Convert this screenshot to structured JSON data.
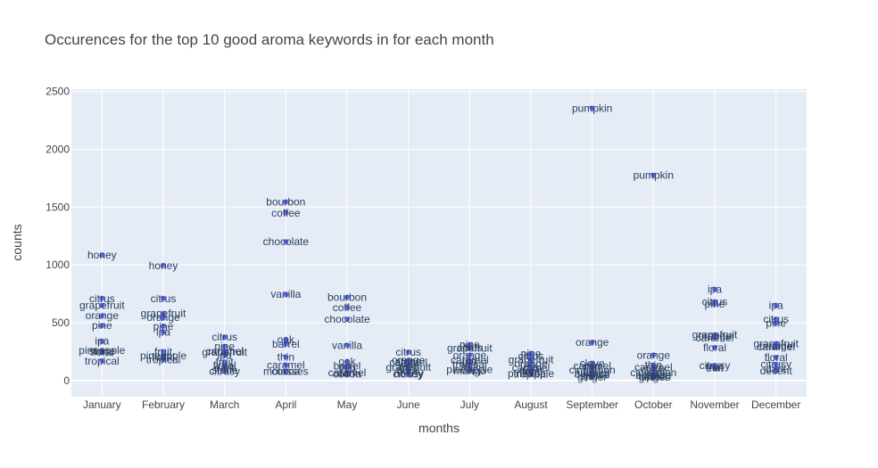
{
  "chart_data": {
    "type": "scatter",
    "title": "Occurences for the top 10 good aroma keywords in for each month",
    "xlabel": "months",
    "ylabel": "counts",
    "categories": [
      "January",
      "February",
      "March",
      "April",
      "May",
      "June",
      "July",
      "August",
      "September",
      "October",
      "November",
      "December"
    ],
    "ylim": [
      -140,
      2520
    ],
    "yticks": [
      0,
      500,
      1000,
      1500,
      2000,
      2500
    ],
    "grid": true,
    "legend": "none",
    "marker_color": "#636efa",
    "points": [
      {
        "month": "January",
        "label": "honey",
        "value": 1085
      },
      {
        "month": "January",
        "label": "citrus",
        "value": 710
      },
      {
        "month": "January",
        "label": "grapefruit",
        "value": 650
      },
      {
        "month": "January",
        "label": "orange",
        "value": 560
      },
      {
        "month": "January",
        "label": "pine",
        "value": 475
      },
      {
        "month": "January",
        "label": "ipa",
        "value": 340
      },
      {
        "month": "January",
        "label": "pineapple",
        "value": 260
      },
      {
        "month": "January",
        "label": "stone",
        "value": 255
      },
      {
        "month": "January",
        "label": "floral",
        "value": 245
      },
      {
        "month": "January",
        "label": "tropical",
        "value": 170
      },
      {
        "month": "February",
        "label": "honey",
        "value": 995
      },
      {
        "month": "February",
        "label": "citrus",
        "value": 710
      },
      {
        "month": "February",
        "label": "grapefruit",
        "value": 580
      },
      {
        "month": "February",
        "label": "orange",
        "value": 545
      },
      {
        "month": "February",
        "label": "pine",
        "value": 470
      },
      {
        "month": "February",
        "label": "ipa",
        "value": 420
      },
      {
        "month": "February",
        "label": "fruit",
        "value": 250
      },
      {
        "month": "February",
        "label": "pineapple",
        "value": 215
      },
      {
        "month": "February",
        "label": "floral",
        "value": 205
      },
      {
        "month": "February",
        "label": "tropical",
        "value": 180
      },
      {
        "month": "March",
        "label": "citrus",
        "value": 375
      },
      {
        "month": "March",
        "label": "pine",
        "value": 295
      },
      {
        "month": "March",
        "label": "caramel",
        "value": 255
      },
      {
        "month": "March",
        "label": "grapefruit",
        "value": 245
      },
      {
        "month": "March",
        "label": "ipa",
        "value": 220
      },
      {
        "month": "March",
        "label": "fruit",
        "value": 160
      },
      {
        "month": "March",
        "label": "floral",
        "value": 130
      },
      {
        "month": "March",
        "label": "dark",
        "value": 110
      },
      {
        "month": "March",
        "label": "stone",
        "value": 90
      },
      {
        "month": "March",
        "label": "citrusy",
        "value": 80
      },
      {
        "month": "April",
        "label": "bourbon",
        "value": 1545
      },
      {
        "month": "April",
        "label": "coffee",
        "value": 1450
      },
      {
        "month": "April",
        "label": "chocolate",
        "value": 1200
      },
      {
        "month": "April",
        "label": "vanilla",
        "value": 745
      },
      {
        "month": "April",
        "label": "oak",
        "value": 355
      },
      {
        "month": "April",
        "label": "barrel",
        "value": 315
      },
      {
        "month": "April",
        "label": "thin",
        "value": 205
      },
      {
        "month": "April",
        "label": "caramel",
        "value": 135
      },
      {
        "month": "April",
        "label": "molasses",
        "value": 80
      },
      {
        "month": "April",
        "label": "cocoa",
        "value": 80
      },
      {
        "month": "May",
        "label": "bourbon",
        "value": 720
      },
      {
        "month": "May",
        "label": "coffee",
        "value": 630
      },
      {
        "month": "May",
        "label": "chocolate",
        "value": 530
      },
      {
        "month": "May",
        "label": "vanilla",
        "value": 305
      },
      {
        "month": "May",
        "label": "oak",
        "value": 165
      },
      {
        "month": "May",
        "label": "barrel",
        "value": 125
      },
      {
        "month": "May",
        "label": "thin",
        "value": 110
      },
      {
        "month": "May",
        "label": "caramel",
        "value": 70
      },
      {
        "month": "May",
        "label": "cocoa",
        "value": 55
      },
      {
        "month": "May",
        "label": "dark",
        "value": 65
      },
      {
        "month": "June",
        "label": "citrus",
        "value": 245
      },
      {
        "month": "June",
        "label": "orange",
        "value": 175
      },
      {
        "month": "June",
        "label": "stone",
        "value": 165
      },
      {
        "month": "June",
        "label": "ipa",
        "value": 160
      },
      {
        "month": "June",
        "label": "caramel",
        "value": 155
      },
      {
        "month": "June",
        "label": "grapefruit",
        "value": 115
      },
      {
        "month": "June",
        "label": "fruit",
        "value": 110
      },
      {
        "month": "June",
        "label": "floral",
        "value": 85
      },
      {
        "month": "June",
        "label": "honey",
        "value": 60
      },
      {
        "month": "June",
        "label": "citrusy",
        "value": 55
      },
      {
        "month": "July",
        "label": "pine",
        "value": 310
      },
      {
        "month": "July",
        "label": "citrus",
        "value": 285
      },
      {
        "month": "July",
        "label": "grapefruit",
        "value": 280
      },
      {
        "month": "July",
        "label": "orange",
        "value": 220
      },
      {
        "month": "July",
        "label": "caramel",
        "value": 175
      },
      {
        "month": "July",
        "label": "ipa",
        "value": 165
      },
      {
        "month": "July",
        "label": "tropical",
        "value": 140
      },
      {
        "month": "July",
        "label": "fruit",
        "value": 120
      },
      {
        "month": "July",
        "label": "pineapple",
        "value": 95
      },
      {
        "month": "July",
        "label": "mango",
        "value": 85
      },
      {
        "month": "August",
        "label": "pine",
        "value": 235
      },
      {
        "month": "August",
        "label": "citrus",
        "value": 210
      },
      {
        "month": "August",
        "label": "grapefruit",
        "value": 180
      },
      {
        "month": "August",
        "label": "orange",
        "value": 145
      },
      {
        "month": "August",
        "label": "ipa",
        "value": 120
      },
      {
        "month": "August",
        "label": "caramel",
        "value": 110
      },
      {
        "month": "August",
        "label": "fruit",
        "value": 80
      },
      {
        "month": "August",
        "label": "floral",
        "value": 75
      },
      {
        "month": "August",
        "label": "pineapple",
        "value": 60
      },
      {
        "month": "August",
        "label": "tropical",
        "value": 55
      },
      {
        "month": "September",
        "label": "pumpkin",
        "value": 2355
      },
      {
        "month": "September",
        "label": "orange",
        "value": 330
      },
      {
        "month": "September",
        "label": "clove",
        "value": 150
      },
      {
        "month": "September",
        "label": "caramel",
        "value": 125
      },
      {
        "month": "September",
        "label": "thin",
        "value": 120
      },
      {
        "month": "September",
        "label": "cinnamon",
        "value": 90
      },
      {
        "month": "September",
        "label": "nutmeg",
        "value": 70
      },
      {
        "month": "September",
        "label": "allspice",
        "value": 55
      },
      {
        "month": "September",
        "label": "spice",
        "value": 40
      },
      {
        "month": "September",
        "label": "ginger",
        "value": 30
      },
      {
        "month": "October",
        "label": "pumpkin",
        "value": 1775
      },
      {
        "month": "October",
        "label": "orange",
        "value": 220
      },
      {
        "month": "October",
        "label": "thin",
        "value": 135
      },
      {
        "month": "October",
        "label": "caramel",
        "value": 115
      },
      {
        "month": "October",
        "label": "clove",
        "value": 90
      },
      {
        "month": "October",
        "label": "cinnamon",
        "value": 70
      },
      {
        "month": "October",
        "label": "nutmeg",
        "value": 50
      },
      {
        "month": "October",
        "label": "allspice",
        "value": 45
      },
      {
        "month": "October",
        "label": "spice",
        "value": 35
      },
      {
        "month": "October",
        "label": "ginger",
        "value": 30
      },
      {
        "month": "November",
        "label": "ipa",
        "value": 790
      },
      {
        "month": "November",
        "label": "citrus",
        "value": 680
      },
      {
        "month": "November",
        "label": "pine",
        "value": 660
      },
      {
        "month": "November",
        "label": "grapefruit",
        "value": 395
      },
      {
        "month": "November",
        "label": "orange",
        "value": 385
      },
      {
        "month": "November",
        "label": "caramel",
        "value": 370
      },
      {
        "month": "November",
        "label": "floral",
        "value": 285
      },
      {
        "month": "November",
        "label": "citrusy",
        "value": 130
      },
      {
        "month": "November",
        "label": "fruit",
        "value": 115
      },
      {
        "month": "November",
        "label": "thin",
        "value": 105
      },
      {
        "month": "December",
        "label": "ipa",
        "value": 650
      },
      {
        "month": "December",
        "label": "citrus",
        "value": 530
      },
      {
        "month": "December",
        "label": "pine",
        "value": 495
      },
      {
        "month": "December",
        "label": "grapefruit",
        "value": 320
      },
      {
        "month": "December",
        "label": "orange",
        "value": 300
      },
      {
        "month": "December",
        "label": "caramel",
        "value": 290
      },
      {
        "month": "December",
        "label": "floral",
        "value": 200
      },
      {
        "month": "December",
        "label": "citrusy",
        "value": 140
      },
      {
        "month": "December",
        "label": "dark",
        "value": 100
      },
      {
        "month": "December",
        "label": "decent",
        "value": 85
      }
    ]
  }
}
